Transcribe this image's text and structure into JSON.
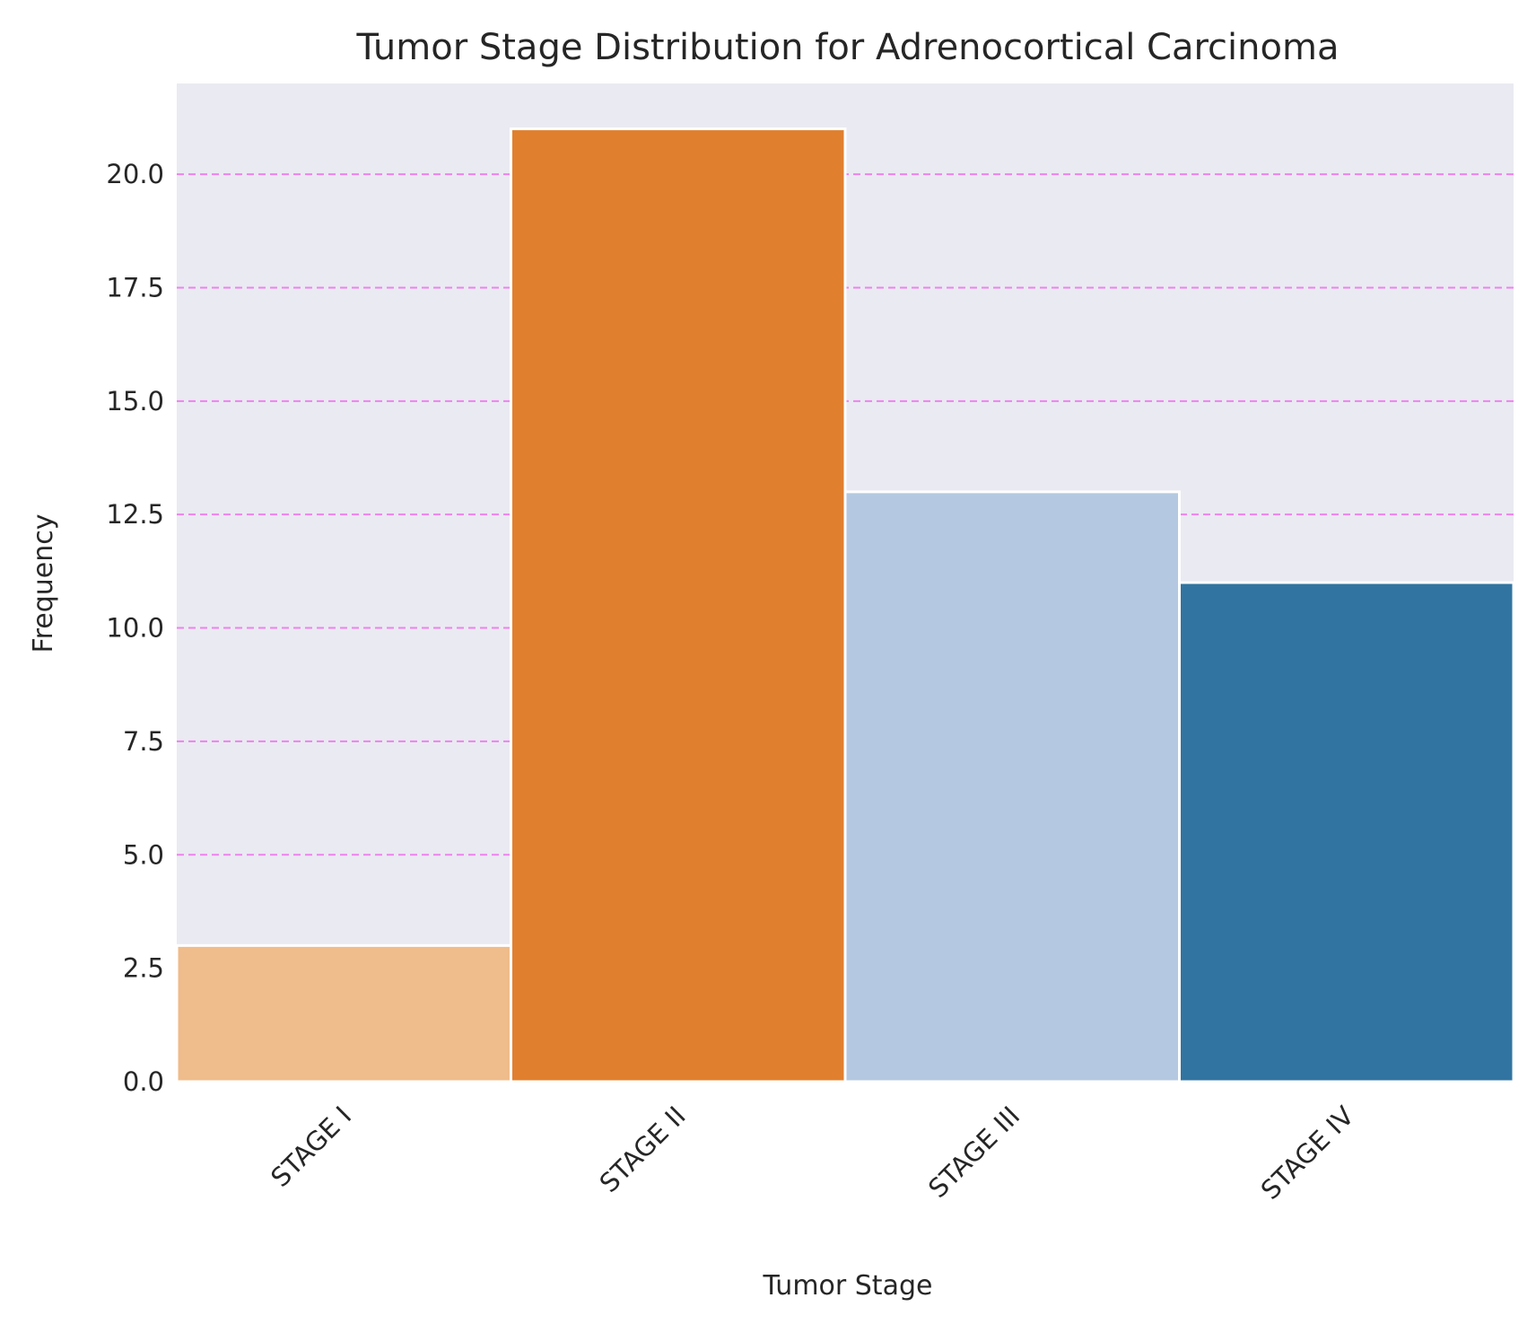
{
  "chart_data": {
    "type": "bar",
    "title": "Tumor Stage Distribution for Adrenocortical Carcinoma",
    "xlabel": "Tumor Stage",
    "ylabel": "Frequency",
    "categories": [
      "STAGE I",
      "STAGE II",
      "STAGE III",
      "STAGE IV"
    ],
    "values": [
      3,
      21,
      13,
      11
    ],
    "ylim": [
      0,
      22
    ],
    "yticks": [
      "0.0",
      "2.5",
      "5.0",
      "7.5",
      "10.0",
      "12.5",
      "15.0",
      "17.5",
      "20.0"
    ],
    "grid": "horizontal dashed",
    "colors": {
      "background": "#eaeaf2",
      "grid": "#ee82ee",
      "bar_edge": "#ffffff",
      "bars": [
        "#efbc8b",
        "#e0802e",
        "#b4c8e1",
        "#3274a1"
      ]
    }
  }
}
